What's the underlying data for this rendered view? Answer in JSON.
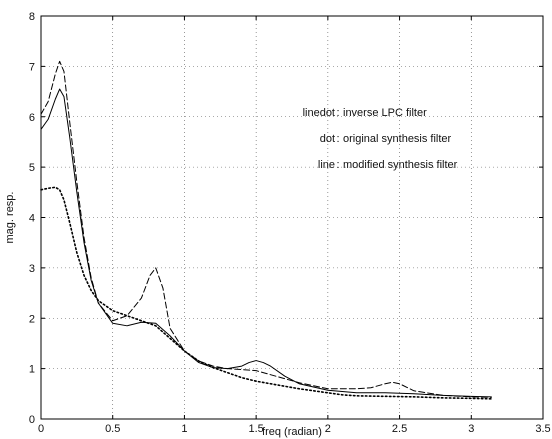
{
  "chart_data": {
    "type": "line",
    "xlabel": "freq (radian)",
    "ylabel": "mag. resp.",
    "xlim": [
      0,
      3.5
    ],
    "ylim": [
      0,
      8
    ],
    "xticks": [
      "0",
      "0.5",
      "1",
      "1.5",
      "2",
      "2.5",
      "3",
      "3.5"
    ],
    "yticks": [
      "0",
      "1",
      "2",
      "3",
      "4",
      "5",
      "6",
      "7",
      "8"
    ],
    "grid": true,
    "legend_placement": "upper-right",
    "legend": [
      {
        "key": "linedot",
        "sep": ":",
        "label": "inverse LPC filter"
      },
      {
        "key": "dot",
        "sep": ":",
        "label": "original synthesis filter"
      },
      {
        "key": "line",
        "sep": ":",
        "label": "modified synthesis filter"
      }
    ],
    "series": [
      {
        "style": "linedot",
        "x": [
          0,
          0.05,
          0.1,
          0.13,
          0.16,
          0.2,
          0.25,
          0.3,
          0.35,
          0.4,
          0.5,
          0.6,
          0.7,
          0.76,
          0.8,
          0.85,
          0.9,
          1.0,
          1.1,
          1.2,
          1.3,
          1.4,
          1.5,
          1.6,
          1.7,
          1.8,
          2.0,
          2.2,
          2.3,
          2.4,
          2.45,
          2.5,
          2.6,
          2.8,
          3.0,
          3.14
        ],
        "y": [
          6.05,
          6.3,
          6.85,
          7.1,
          6.9,
          5.9,
          4.7,
          3.6,
          2.8,
          2.3,
          1.95,
          2.05,
          2.4,
          2.85,
          3.0,
          2.6,
          1.8,
          1.35,
          1.15,
          1.05,
          1.0,
          0.98,
          0.96,
          0.88,
          0.8,
          0.72,
          0.6,
          0.6,
          0.62,
          0.7,
          0.73,
          0.7,
          0.56,
          0.47,
          0.44,
          0.43
        ]
      },
      {
        "style": "dot",
        "x": [
          0,
          0.05,
          0.1,
          0.13,
          0.16,
          0.2,
          0.25,
          0.3,
          0.35,
          0.4,
          0.5,
          0.6,
          0.7,
          0.8,
          0.9,
          1.0,
          1.1,
          1.2,
          1.3,
          1.4,
          1.5,
          1.6,
          1.7,
          1.8,
          1.9,
          2.0,
          2.1,
          2.2,
          2.4,
          2.6,
          2.8,
          3.0,
          3.14
        ],
        "y": [
          4.55,
          4.58,
          4.6,
          4.55,
          4.35,
          3.9,
          3.3,
          2.85,
          2.55,
          2.35,
          2.15,
          2.05,
          1.95,
          1.85,
          1.6,
          1.35,
          1.15,
          1.02,
          0.92,
          0.82,
          0.75,
          0.7,
          0.65,
          0.6,
          0.56,
          0.52,
          0.48,
          0.46,
          0.45,
          0.44,
          0.42,
          0.41,
          0.4
        ]
      },
      {
        "style": "line",
        "x": [
          0,
          0.05,
          0.1,
          0.13,
          0.16,
          0.2,
          0.25,
          0.3,
          0.35,
          0.4,
          0.5,
          0.6,
          0.7,
          0.8,
          0.9,
          1.0,
          1.1,
          1.2,
          1.3,
          1.4,
          1.45,
          1.5,
          1.55,
          1.6,
          1.7,
          1.8,
          2.0,
          2.2,
          2.4,
          2.6,
          2.8,
          3.0,
          3.14
        ],
        "y": [
          5.75,
          5.95,
          6.35,
          6.55,
          6.4,
          5.6,
          4.5,
          3.5,
          2.75,
          2.3,
          1.9,
          1.85,
          1.92,
          1.9,
          1.65,
          1.35,
          1.12,
          1.02,
          1.0,
          1.05,
          1.12,
          1.16,
          1.12,
          1.05,
          0.85,
          0.7,
          0.57,
          0.52,
          0.52,
          0.5,
          0.47,
          0.45,
          0.44
        ]
      }
    ]
  }
}
